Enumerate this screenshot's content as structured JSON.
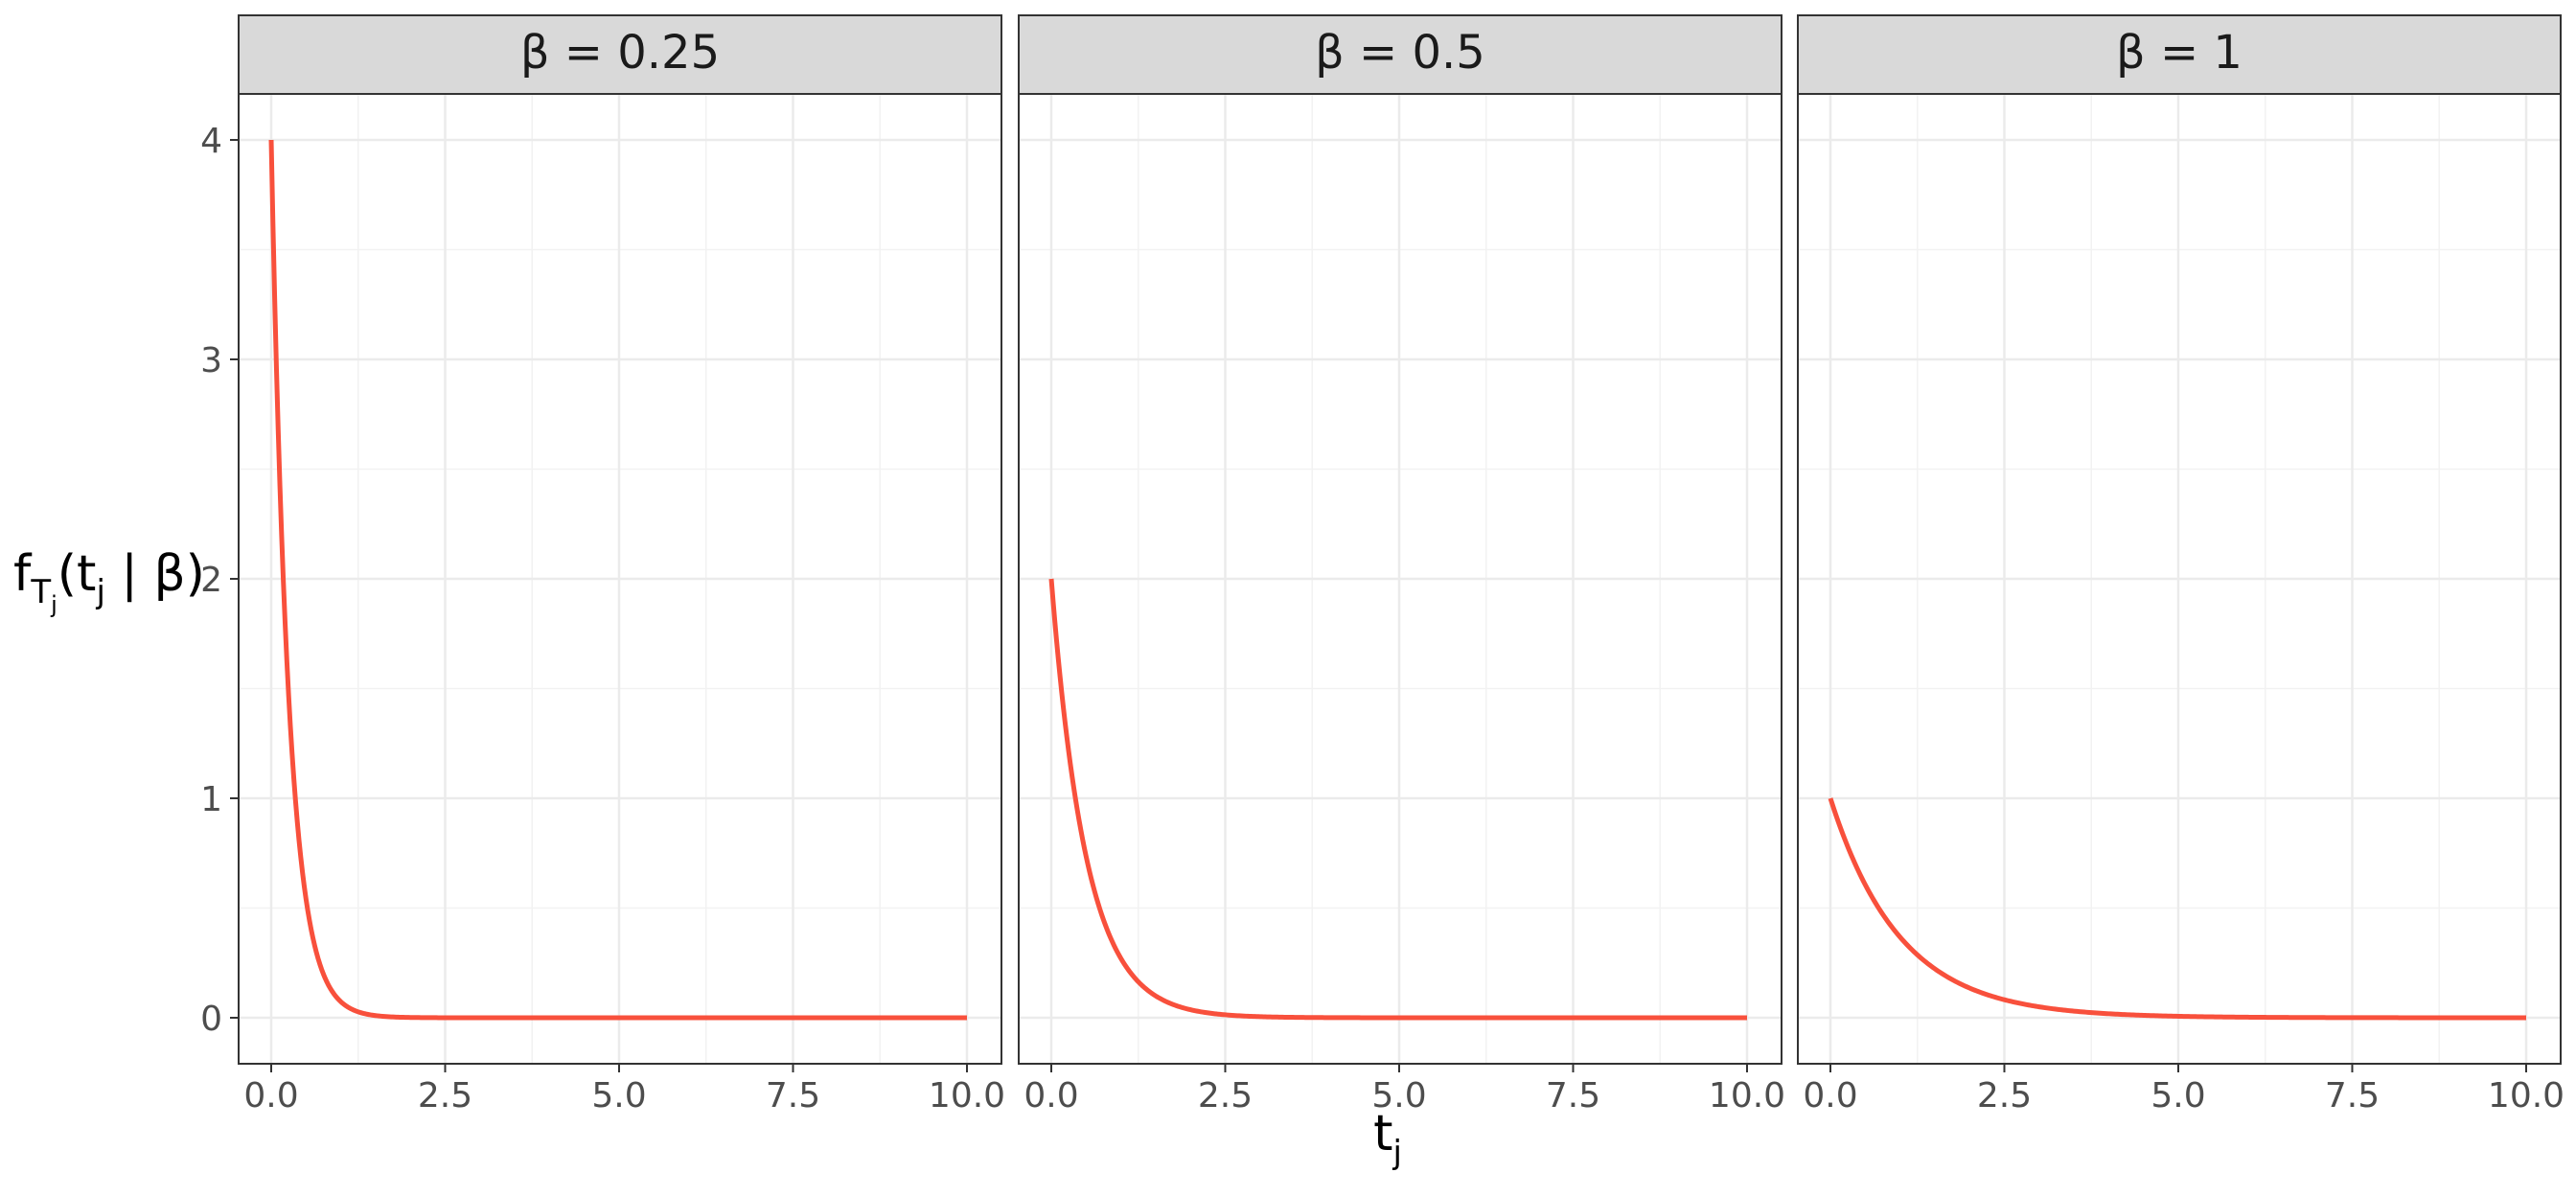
{
  "chart_data": {
    "type": "line",
    "function": "f(t) = exp(-t/β)/β",
    "x_ticks": [
      "0.0",
      "2.5",
      "5.0",
      "7.5",
      "10.0"
    ],
    "y_ticks": [
      "0",
      "1",
      "2",
      "3",
      "4"
    ],
    "xlim": [
      0,
      10
    ],
    "ylim": [
      0,
      4
    ],
    "grid": true,
    "line_color": "#F8503C",
    "xlabel": {
      "main": "t",
      "sub": "j"
    },
    "ylabel": {
      "f": "f",
      "T": "T",
      "j1": "j",
      "mid": "(t",
      "j2": "j",
      "end": " | β)"
    },
    "panels": [
      {
        "strip": "β = 0.25",
        "beta": 0.25,
        "x": [
          0.0,
          0.1,
          0.2,
          0.3,
          0.4,
          0.5,
          0.6,
          0.7,
          0.8,
          1.0,
          1.25,
          1.5,
          2.0,
          2.5,
          3.0,
          4.0,
          5.0,
          7.5,
          10.0
        ],
        "y": [
          4.0,
          2.681,
          1.797,
          1.205,
          0.808,
          0.541,
          0.363,
          0.243,
          0.163,
          0.073,
          0.027,
          0.01,
          0.001,
          0.0002,
          0.0,
          0.0,
          0.0,
          0.0,
          0.0
        ]
      },
      {
        "strip": "β = 0.5",
        "beta": 0.5,
        "x": [
          0.0,
          0.1,
          0.2,
          0.3,
          0.4,
          0.5,
          0.75,
          1.0,
          1.25,
          1.5,
          2.0,
          2.5,
          3.0,
          4.0,
          5.0,
          7.5,
          10.0
        ],
        "y": [
          2.0,
          1.637,
          1.341,
          1.098,
          0.899,
          0.736,
          0.446,
          0.271,
          0.164,
          0.1,
          0.037,
          0.013,
          0.005,
          0.0007,
          0.0001,
          0.0,
          0.0
        ]
      },
      {
        "strip": "β = 1",
        "beta": 1,
        "x": [
          0.0,
          0.25,
          0.5,
          0.75,
          1.0,
          1.5,
          2.0,
          2.5,
          3.0,
          3.5,
          4.0,
          5.0,
          6.0,
          7.5,
          10.0
        ],
        "y": [
          1.0,
          0.779,
          0.607,
          0.472,
          0.368,
          0.223,
          0.135,
          0.082,
          0.05,
          0.03,
          0.018,
          0.007,
          0.002,
          0.0006,
          5e-05
        ]
      }
    ]
  }
}
